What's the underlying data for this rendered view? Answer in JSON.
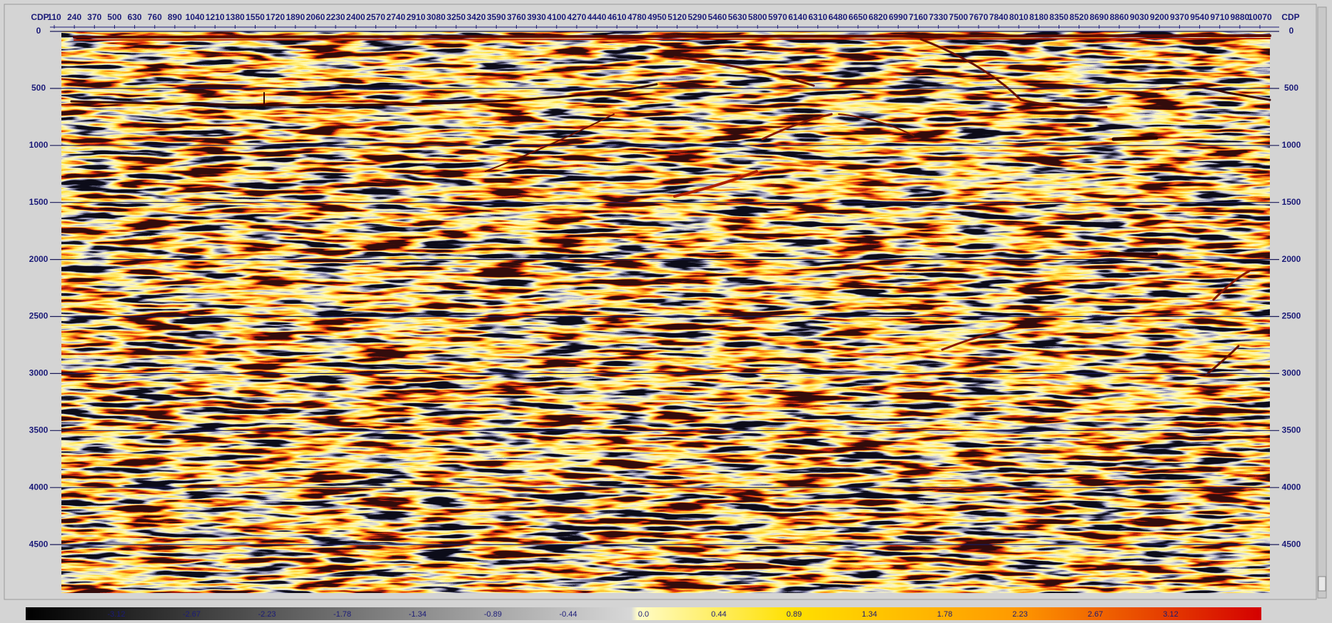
{
  "cdp_axis": {
    "label": "CDP",
    "ticks": [
      110,
      240,
      370,
      500,
      630,
      760,
      890,
      1040,
      1210,
      1380,
      1550,
      1720,
      1890,
      2060,
      2230,
      2400,
      2570,
      2740,
      2910,
      3080,
      3250,
      3420,
      3590,
      3760,
      3930,
      4100,
      4270,
      4440,
      4610,
      4780,
      4950,
      5120,
      5290,
      5460,
      5630,
      5800,
      5970,
      6140,
      6310,
      6480,
      6650,
      6820,
      6990,
      7160,
      7330,
      7500,
      7670,
      7840,
      8010,
      8180,
      8350,
      8520,
      8690,
      8860,
      9030,
      9200,
      9370,
      9540,
      9710,
      9880,
      10070
    ]
  },
  "time_axis": {
    "ticks": [
      0,
      500,
      1000,
      1500,
      2000,
      2500,
      3000,
      3500,
      4000,
      4500
    ]
  },
  "colorbar": {
    "labels": [
      "-3.12",
      "-2.67",
      "-2.23",
      "-1.78",
      "-1.34",
      "-0.89",
      "-0.44",
      "0.0",
      "0.44",
      "0.89",
      "1.34",
      "1.78",
      "2.23",
      "2.67",
      "3.12"
    ]
  }
}
